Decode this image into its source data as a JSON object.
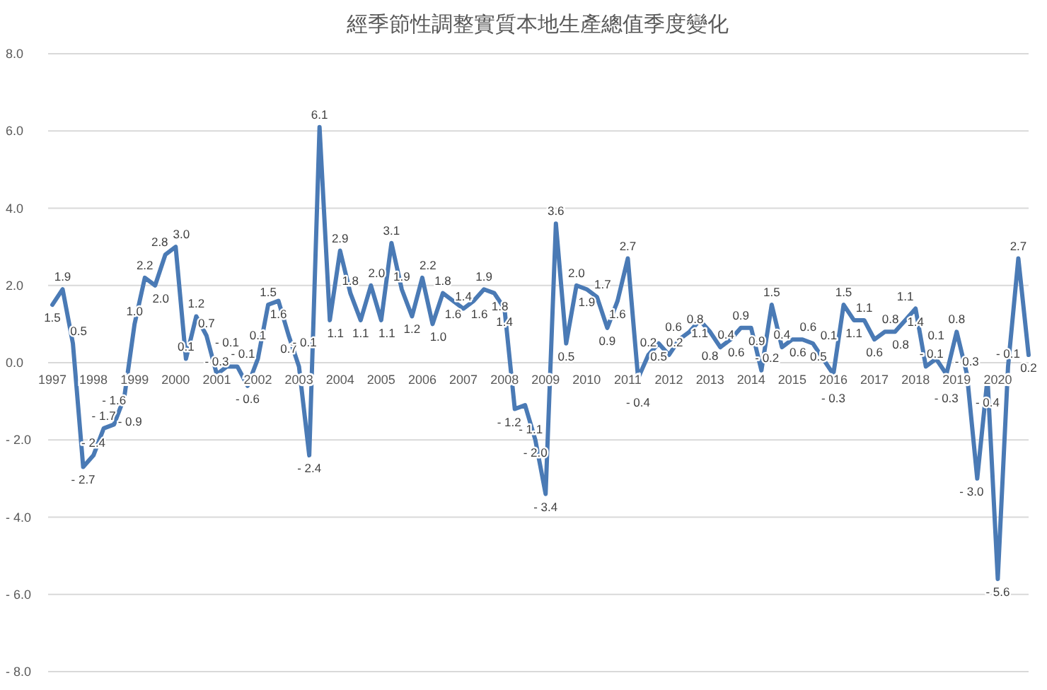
{
  "chart_data": {
    "type": "line",
    "title": "經季節性調整實質本地生產總值季度變化",
    "categories": [
      "1997",
      null,
      null,
      null,
      "1998",
      null,
      null,
      null,
      "1999",
      null,
      null,
      null,
      "2000",
      null,
      null,
      null,
      "2001",
      null,
      null,
      null,
      "2002",
      null,
      null,
      null,
      "2003",
      null,
      null,
      null,
      "2004",
      null,
      null,
      null,
      "2005",
      null,
      null,
      null,
      "2006",
      null,
      null,
      null,
      "2007",
      null,
      null,
      null,
      "2008",
      null,
      null,
      null,
      "2009",
      null,
      null,
      null,
      "2010",
      null,
      null,
      null,
      "2011",
      null,
      null,
      null,
      "2012",
      null,
      null,
      null,
      "2013",
      null,
      null,
      null,
      "2014",
      null,
      null,
      null,
      "2015",
      null,
      null,
      null,
      "2016",
      null,
      null,
      null,
      "2017",
      null,
      null,
      null,
      "2018",
      null,
      null,
      null,
      "2019",
      null,
      null,
      null,
      "2020",
      null,
      null,
      null
    ],
    "series": [
      {
        "color": "#4a7ab5",
        "values": [
          1.5,
          1.9,
          0.5,
          -2.7,
          -2.4,
          -1.7,
          -1.6,
          -0.9,
          1.0,
          2.2,
          2.0,
          2.8,
          3.0,
          0.1,
          1.2,
          0.7,
          -0.3,
          -0.1,
          -0.1,
          -0.6,
          0.1,
          1.5,
          1.6,
          0.7,
          -0.1,
          -2.4,
          6.1,
          1.1,
          2.9,
          1.8,
          1.1,
          2.0,
          1.1,
          3.1,
          1.9,
          1.2,
          2.2,
          1.0,
          1.8,
          1.6,
          1.4,
          1.6,
          1.9,
          1.8,
          1.4,
          -1.2,
          -1.1,
          -2.0,
          -3.4,
          3.6,
          0.5,
          2.0,
          1.9,
          1.7,
          0.9,
          1.6,
          2.7,
          -0.4,
          0.2,
          0.5,
          0.2,
          0.6,
          0.8,
          1.1,
          0.8,
          0.4,
          0.6,
          0.9,
          0.9,
          -0.2,
          1.5,
          0.4,
          0.6,
          0.6,
          0.5,
          0.1,
          -0.3,
          1.5,
          1.1,
          1.1,
          0.6,
          0.8,
          0.8,
          1.1,
          1.4,
          -0.1,
          0.1,
          -0.3,
          0.8,
          -0.3,
          -3.0,
          -0.4,
          -5.6,
          -0.1,
          2.7,
          0.2
        ],
        "value_labels": [
          "1.5",
          "1.9",
          "0.5",
          "- 2.7",
          "- 2.4",
          "- 1.7",
          "- 1.6",
          "- 0.9",
          "1.0",
          "2.2",
          "2.0",
          "2.8",
          "3.0",
          "0.1",
          "1.2",
          "0.7",
          "- 0.3",
          "- 0.1",
          "- 0.1",
          "- 0.6",
          "0.1",
          "1.5",
          "1.6",
          "0.7",
          "- 0.1",
          "- 2.4",
          "6.1",
          "1.1",
          "2.9",
          "1.8",
          "1.1",
          "2.0",
          "1.1",
          "3.1",
          "1.9",
          "1.2",
          "2.2",
          "1.0",
          "1.8",
          "1.6",
          "1.4",
          "1.6",
          "1.9",
          "1.8",
          "1.4",
          "- 1.2",
          "- 1.1",
          "- 2.0",
          "- 3.4",
          "3.6",
          "0.5",
          "2.0",
          "1.9",
          "1.7",
          "0.9",
          "1.6",
          "2.7",
          "- 0.4",
          "0.2",
          "0.5",
          "0.2",
          "0.6",
          "0.8",
          "1.1",
          "0.8",
          "0.4",
          "0.6",
          "0.9",
          "0.9",
          "- 0.2",
          "1.5",
          "0.4",
          "0.6",
          "0.6",
          "0.5",
          "0.1",
          "- 0.3",
          "1.5",
          "1.1",
          "1.1",
          "0.6",
          "0.8",
          "0.8",
          "1.1",
          "1.4",
          "- 0.1",
          "0.1",
          "- 0.3",
          "0.8",
          "- 0.3",
          "- 3.0",
          "- 0.4",
          "- 5.6",
          "- 0.1",
          "2.7",
          "0.2"
        ]
      }
    ],
    "ylim": [
      -8,
      8
    ],
    "yticks": [
      {
        "value": -8,
        "label": "- 8.0"
      },
      {
        "value": -6,
        "label": "- 6.0"
      },
      {
        "value": -4,
        "label": "- 4.0"
      },
      {
        "value": -2,
        "label": "- 2.0"
      },
      {
        "value": 0,
        "label": "0.0"
      },
      {
        "value": 2,
        "label": "2.0"
      },
      {
        "value": 4,
        "label": "4.0"
      },
      {
        "value": 6,
        "label": "6.0"
      },
      {
        "value": 8,
        "label": "8.0"
      }
    ],
    "grid": "y",
    "marker": "none",
    "line_style": "solid"
  }
}
